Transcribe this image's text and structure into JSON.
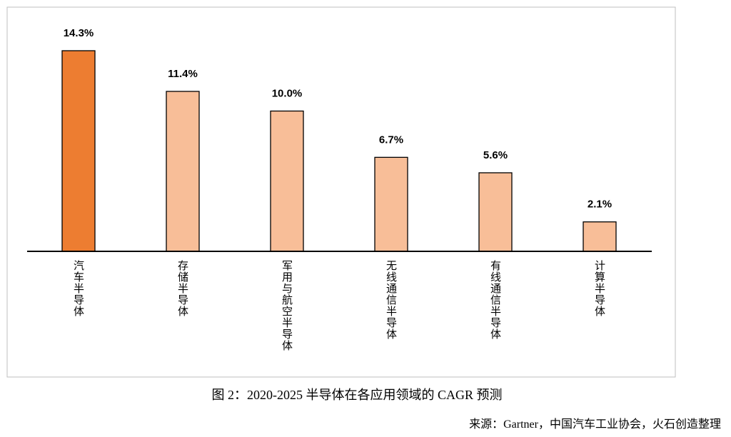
{
  "chart_data": {
    "type": "bar",
    "categories": [
      "汽车半导体",
      "存储半导体",
      "军用与航空半导体",
      "无线通信半导体",
      "有线通信半导体",
      "计算半导体"
    ],
    "values": [
      14.3,
      11.4,
      10.0,
      6.7,
      5.6,
      2.1
    ],
    "value_labels": [
      "14.3%",
      "11.4%",
      "10.0%",
      "6.7%",
      "5.6%",
      "2.1%"
    ],
    "colors": [
      "#ed7d31",
      "#f8be98",
      "#f8be98",
      "#f8be98",
      "#f8be98",
      "#f8be98"
    ],
    "caption": "图 2：2020-2025 半导体在各应用领域的 CAGR 预测",
    "source": "来源：Gartner，中国汽车工业协会，火石创造整理"
  }
}
